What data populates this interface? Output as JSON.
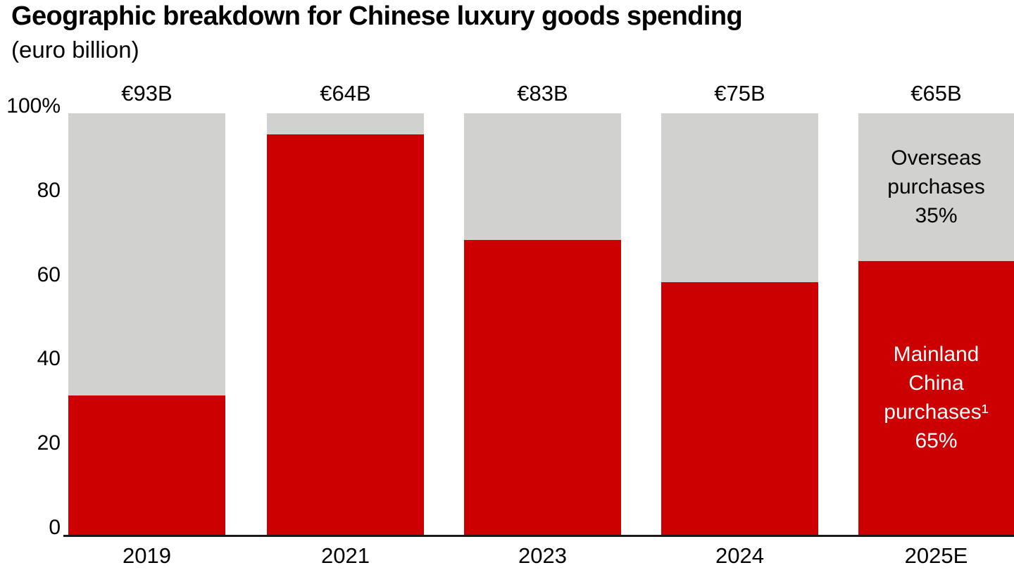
{
  "title": "Geographic breakdown for Chinese luxury goods spending",
  "subtitle": "(euro billion)",
  "colors": {
    "mainland_red": "#CC0000",
    "overseas_gray": "#D1D1CF",
    "axis_line": "#1A1A1A",
    "text": "#000000",
    "annotation_on_red": "#FFFFFF"
  },
  "chart_data": {
    "type": "bar",
    "variant": "stacked-percentage-columns",
    "title": "Geographic breakdown for Chinese luxury goods spending",
    "subtitle": "(euro billion)",
    "categories": [
      "2019",
      "2021",
      "2023",
      "2024",
      "2025E"
    ],
    "totals": [
      "€93B",
      "€64B",
      "€83B",
      "€75B",
      "€65B"
    ],
    "series": [
      {
        "name": "Mainland China purchases¹",
        "color": "#CC0000",
        "values": [
          33,
          95,
          70,
          60,
          65
        ]
      },
      {
        "name": "Overseas purchases",
        "color": "#D1D1CF",
        "values": [
          67,
          5,
          30,
          40,
          35
        ]
      }
    ],
    "ylabel": "",
    "xlabel": "",
    "ylim": [
      0,
      100
    ],
    "grid": false,
    "legend_position": "annotations-inside-last-bar",
    "y_axis": {
      "tick_labels": [
        "100%",
        "80",
        "60",
        "40",
        "20",
        "0"
      ],
      "tick_values": [
        100,
        80,
        60,
        40,
        20,
        0
      ]
    },
    "annotations": [
      {
        "segment": "overseas",
        "category": "2025E",
        "lines": [
          "Overseas",
          "purchases",
          "35%"
        ],
        "text_color": "#000000"
      },
      {
        "segment": "mainland",
        "category": "2025E",
        "lines": [
          "Mainland",
          "China",
          "purchases¹",
          "65%"
        ],
        "text_color": "#FFFFFF"
      }
    ]
  }
}
